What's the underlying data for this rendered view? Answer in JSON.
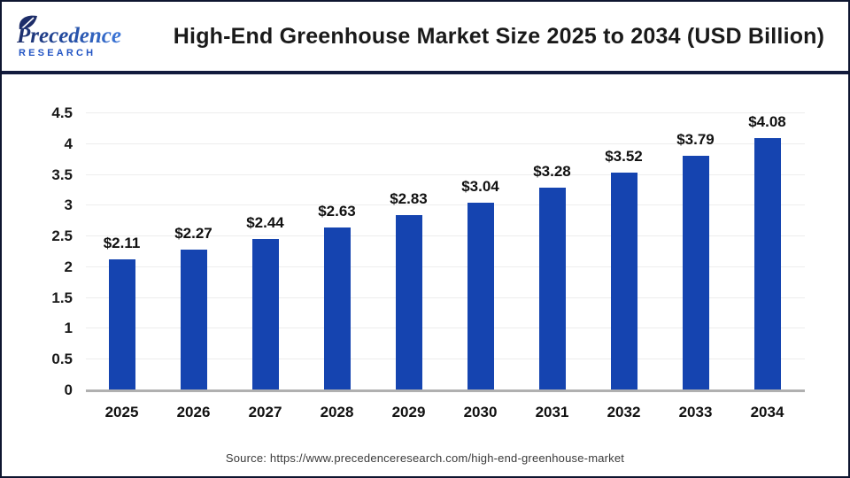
{
  "header": {
    "logo": {
      "name_line": "Precedence",
      "sub_line": "R E S E A R C H"
    },
    "title": "High-End Greenhouse Market Size 2025 to 2034 (USD Billion)"
  },
  "chart_data": {
    "type": "bar",
    "title": "High-End Greenhouse Market Size 2025 to 2034 (USD Billion)",
    "categories": [
      "2025",
      "2026",
      "2027",
      "2028",
      "2029",
      "2030",
      "2031",
      "2032",
      "2033",
      "2034"
    ],
    "values": [
      2.11,
      2.27,
      2.44,
      2.63,
      2.83,
      3.04,
      3.28,
      3.52,
      3.79,
      4.08
    ],
    "bar_labels": [
      "$2.11",
      "$2.27",
      "$2.44",
      "$2.63",
      "$2.83",
      "$3.04",
      "$3.28",
      "$3.52",
      "$3.79",
      "$4.08"
    ],
    "xlabel": "",
    "ylabel": "",
    "y_ticks": [
      0,
      0.5,
      1,
      1.5,
      2,
      2.5,
      3,
      3.5,
      4,
      4.5
    ],
    "y_tick_labels": [
      "0",
      "0.5",
      "1",
      "1.5",
      "2",
      "2.5",
      "3",
      "3.5",
      "4",
      "4.5"
    ],
    "ylim": [
      0,
      4.5
    ],
    "grid": true,
    "legend_position": "none",
    "bar_color": "#1544b0",
    "gridline_color": "#ededed",
    "axis_line_color": "#b0b0b0"
  },
  "footer": {
    "source": "Source: https://www.precedenceresearch.com/high-end-greenhouse-market"
  },
  "colors": {
    "accent_navy": "#121b3d",
    "logo_navy": "#1d2d69",
    "logo_blue": "#3c77d9",
    "title_text": "#1a1a1a"
  }
}
